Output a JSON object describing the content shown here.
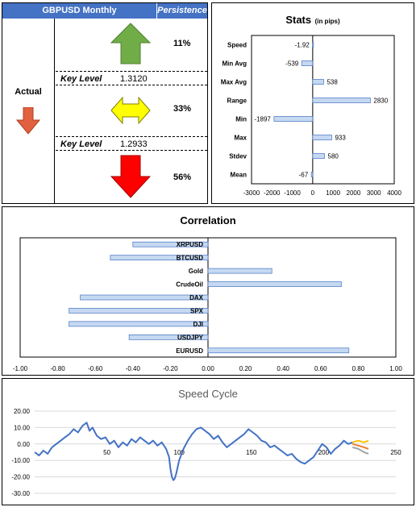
{
  "persistence_table": {
    "title": "GBPUSD Monthly",
    "persistence_label": "Persistence",
    "actual_label": "Actual",
    "up_pct": "11%",
    "flat_pct": "33%",
    "down_pct": "56%",
    "key_level_label": "Key Level",
    "key_level_upper": "1.3120",
    "key_level_lower": "1.2933",
    "colors": {
      "header": "#4472c4",
      "up": "#70ad47",
      "flat": "#ffff00",
      "down": "#ff0000",
      "actual": "#e06040"
    }
  },
  "stats_chart": {
    "title": "Stats",
    "subtitle": "(in pips)",
    "chart_data": {
      "type": "bar",
      "orientation": "horizontal",
      "categories": [
        "Speed",
        "Min Avg",
        "Max Avg",
        "Range",
        "Min",
        "Max",
        "Stdev",
        "Mean"
      ],
      "values": [
        -1.92,
        -539,
        538,
        2830,
        -1897,
        933,
        580,
        -67
      ],
      "value_labels": [
        "-1.92",
        "-539",
        "538",
        "2830",
        "-1897",
        "933",
        "580",
        "-67"
      ],
      "xlim": [
        -3000,
        4000
      ],
      "xticks": [
        "-3000",
        "-2000",
        "-1000",
        "0",
        "1000",
        "2000",
        "3000",
        "4000"
      ]
    }
  },
  "correlation_chart": {
    "title": "Correlation",
    "chart_data": {
      "type": "bar",
      "orientation": "horizontal",
      "categories": [
        "XRPUSD",
        "BTCUSD",
        "Gold",
        "CrudeOil",
        "DAX",
        "SPX",
        "DJI",
        "USDJPY",
        "EURUSD"
      ],
      "values": [
        -0.4,
        -0.52,
        0.34,
        0.71,
        -0.68,
        -0.74,
        -0.74,
        -0.42,
        0.75
      ],
      "xlim": [
        -1,
        1
      ],
      "xticks": [
        "-1.00",
        "-0.80",
        "-0.60",
        "-0.40",
        "-0.20",
        "0.00",
        "0.20",
        "0.40",
        "0.60",
        "0.80",
        "1.00"
      ]
    }
  },
  "speed_cycle_chart": {
    "title": "Speed Cycle",
    "chart_data": {
      "type": "line",
      "xlim": [
        0,
        250
      ],
      "ylim": [
        -30,
        20
      ],
      "xticks": [
        "50",
        "100",
        "150",
        "200",
        "250"
      ],
      "yticks": [
        "20.00",
        "10.00",
        "0.00",
        "-10.00",
        "-20.00",
        "-30.00"
      ],
      "series": [
        {
          "color": "#4472c4",
          "x": [
            0,
            3,
            6,
            9,
            12,
            15,
            18,
            21,
            24,
            27,
            30,
            33,
            36,
            38,
            40,
            43,
            46,
            49,
            52,
            55,
            58,
            61,
            64,
            67,
            70,
            73,
            76,
            79,
            82,
            85,
            88,
            91,
            93,
            94,
            95,
            96,
            97,
            98,
            100,
            103,
            106,
            109,
            112,
            115,
            118,
            121,
            124,
            127,
            130,
            133,
            136,
            139,
            142,
            145,
            148,
            151,
            154,
            157,
            160,
            163,
            166,
            169,
            172,
            175,
            178,
            181,
            184,
            187,
            190,
            193,
            196,
            199,
            202,
            205,
            208,
            211,
            214,
            217,
            220
          ],
          "y": [
            -5,
            -7,
            -4,
            -6,
            -2,
            0,
            2,
            4,
            6,
            9,
            7,
            11,
            13,
            8,
            10,
            5,
            3,
            4,
            0,
            2,
            -2,
            1,
            -1,
            3,
            1,
            4,
            2,
            0,
            2,
            -1,
            1,
            -3,
            -8,
            -15,
            -20,
            -22,
            -21,
            -18,
            -10,
            -3,
            2,
            6,
            9,
            10,
            8,
            6,
            3,
            5,
            1,
            -2,
            0,
            2,
            4,
            6,
            9,
            7,
            5,
            2,
            1,
            -2,
            -1,
            -3,
            -5,
            -7,
            -6,
            -9,
            -11,
            -12,
            -10,
            -8,
            -4,
            0,
            -2,
            -6,
            -3,
            -1,
            2,
            0,
            1
          ]
        },
        {
          "color": "#ffc000",
          "x": [
            220,
            224,
            228,
            231
          ],
          "y": [
            1,
            2,
            1,
            2
          ]
        },
        {
          "color": "#ed7d31",
          "x": [
            220,
            224,
            228,
            231
          ],
          "y": [
            0,
            -1,
            -2,
            -3
          ]
        },
        {
          "color": "#a5a5a5",
          "x": [
            220,
            224,
            228,
            231
          ],
          "y": [
            -2,
            -3,
            -5,
            -6
          ]
        }
      ]
    }
  }
}
